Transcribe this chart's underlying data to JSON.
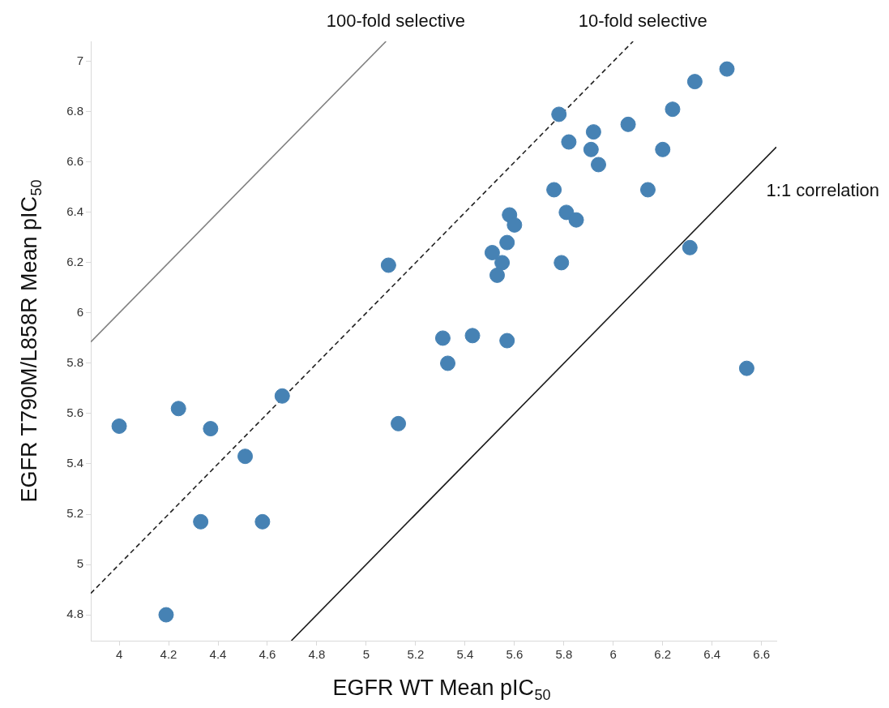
{
  "chart_data": {
    "type": "scatter",
    "xlabel": "EGFR WT Mean pIC$_{50}$",
    "ylabel": "EGFR T790M/L858R Mean pIC$_{50}$",
    "xlim": [
      3.885,
      6.66
    ],
    "ylim": [
      4.697,
      7.08
    ],
    "xticks": [
      4,
      4.2,
      4.4,
      4.6,
      4.8,
      5,
      5.2,
      5.4,
      5.6,
      5.8,
      6,
      6.2,
      6.4,
      6.6
    ],
    "yticks": [
      4.8,
      5,
      5.2,
      5.4,
      5.6,
      5.8,
      6,
      6.2,
      6.4,
      6.6,
      6.8,
      7
    ],
    "grid": false,
    "legend": false,
    "series": [
      {
        "type": "line",
        "name": "100-fold selective",
        "color": "#808080",
        "line_style": "solid",
        "marker": "none",
        "x": [
          3.885,
          5.08
        ],
        "values": [
          5.885,
          7.08
        ]
      },
      {
        "type": "line",
        "name": "10-fold selective",
        "color": "#222222",
        "line_style": "dashed",
        "marker": "none",
        "x": [
          3.885,
          6.08
        ],
        "values": [
          4.885,
          7.08
        ]
      },
      {
        "type": "line",
        "name": "1:1 correlation",
        "color": "#1a1a1a",
        "line_style": "solid",
        "marker": "none",
        "x": [
          4.697,
          6.66
        ],
        "values": [
          4.697,
          6.66
        ]
      },
      {
        "color": "#4682b4",
        "marker": "circle",
        "x": [
          4.0,
          4.24,
          4.37,
          4.66,
          4.51,
          4.33,
          4.58,
          4.19,
          5.13,
          5.09,
          5.78,
          6.46,
          6.33,
          6.24,
          6.06,
          5.92,
          5.82,
          5.91,
          6.2,
          5.94,
          5.76,
          6.14,
          5.81,
          5.85,
          5.58,
          5.6,
          5.57,
          5.51,
          5.55,
          5.53,
          5.79,
          6.31,
          5.31,
          5.43,
          5.57,
          5.33,
          6.54
        ],
        "values": [
          5.55,
          5.62,
          5.54,
          5.67,
          5.43,
          5.17,
          5.17,
          4.8,
          5.56,
          6.19,
          6.79,
          6.97,
          6.92,
          6.81,
          6.75,
          6.72,
          6.68,
          6.65,
          6.65,
          6.59,
          6.49,
          6.49,
          6.4,
          6.37,
          6.39,
          6.35,
          6.28,
          6.24,
          6.2,
          6.15,
          6.2,
          6.26,
          5.9,
          5.91,
          5.89,
          5.8,
          5.78
        ]
      }
    ]
  }
}
